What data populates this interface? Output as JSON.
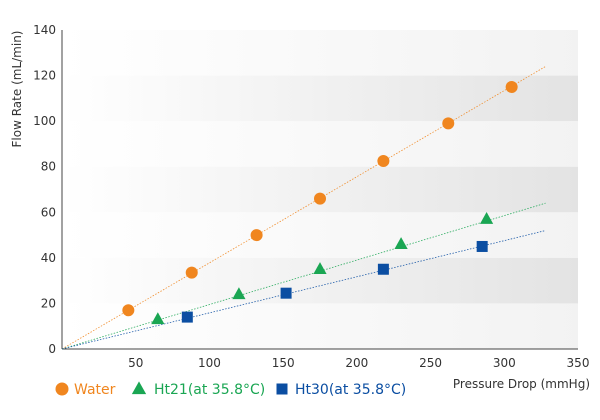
{
  "chart_data": {
    "type": "scatter",
    "xlabel": "Pressure Drop (mmHg)",
    "ylabel": "Flow Rate (mL/min)",
    "xlim": [
      0,
      350
    ],
    "ylim": [
      0,
      140
    ],
    "x_ticks": [
      50,
      100,
      150,
      200,
      250,
      300,
      350
    ],
    "y_ticks": [
      0,
      20,
      40,
      60,
      80,
      100,
      120,
      140
    ],
    "grid": "horizontal bands",
    "legend_position": "bottom-left",
    "series": [
      {
        "name": "Water",
        "marker": "circle",
        "color": "#f0861f",
        "x": [
          45,
          88,
          132,
          175,
          218,
          262,
          305
        ],
        "y": [
          17,
          33.5,
          50,
          66,
          82.5,
          99,
          115
        ],
        "trend": {
          "from": [
            0,
            0
          ],
          "to": [
            328,
            124
          ]
        }
      },
      {
        "name": "Ht21(at 35.8°C)",
        "marker": "triangle",
        "color": "#1aa653",
        "x": [
          65,
          120,
          175,
          230,
          288
        ],
        "y": [
          13,
          24,
          35,
          46,
          57
        ],
        "trend": {
          "from": [
            0,
            0
          ],
          "to": [
            328,
            64
          ]
        }
      },
      {
        "name": "Ht30(at 35.8°C)",
        "marker": "square",
        "color": "#0b4ea2",
        "x": [
          85,
          152,
          218,
          285
        ],
        "y": [
          14,
          24.5,
          35,
          45
        ],
        "trend": {
          "from": [
            0,
            0
          ],
          "to": [
            328,
            52
          ]
        }
      }
    ]
  }
}
